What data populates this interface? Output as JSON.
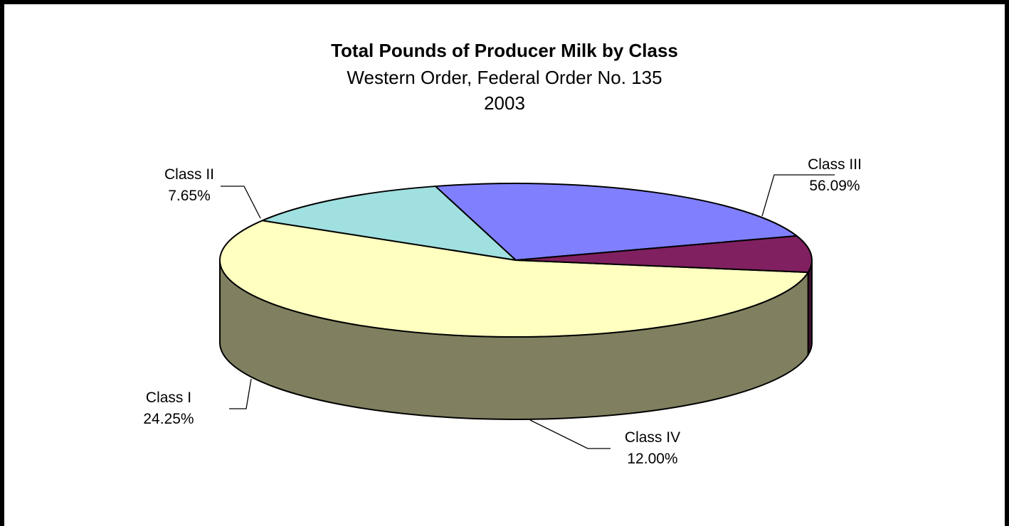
{
  "chart_data": {
    "type": "pie",
    "title": "Total Pounds of Producer Milk by Class",
    "subtitle": "Western Order, Federal Order No. 135",
    "subtitle2": "2003",
    "slices": [
      {
        "label": "Class III",
        "percent_label": "56.09%",
        "value": 56.09,
        "top_color": "#FFFFC0",
        "side_color": "#808060"
      },
      {
        "label": "Class IV",
        "percent_label": "12.00%",
        "value": 12.0,
        "top_color": "#A0E0E0",
        "side_color": "#507070"
      },
      {
        "label": "Class I",
        "percent_label": "24.25%",
        "value": 24.25,
        "top_color": "#8080FF",
        "side_color": "#404080"
      },
      {
        "label": "Class II",
        "percent_label": "7.65%",
        "value": 7.65,
        "top_color": "#802060",
        "side_color": "#401030"
      }
    ],
    "style": "3d-pie",
    "legend": "none",
    "data_labels": "outside-with-leader-lines"
  }
}
